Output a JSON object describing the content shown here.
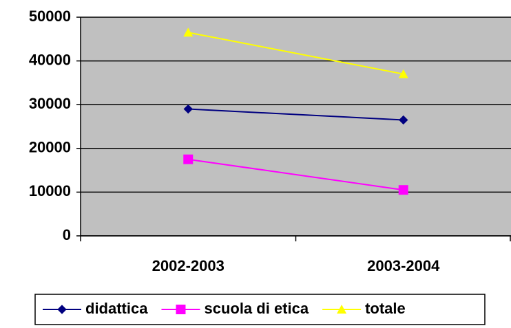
{
  "chart_data": {
    "type": "line",
    "categories": [
      "2002-2003",
      "2003-2004"
    ],
    "series": [
      {
        "name": "didattica",
        "color": "#000080",
        "marker": "diamond",
        "values": [
          29000,
          26500
        ]
      },
      {
        "name": "scuola di etica",
        "color": "#ff00ff",
        "marker": "square",
        "values": [
          17500,
          10500
        ]
      },
      {
        "name": "totale",
        "color": "#ffff00",
        "marker": "triangle",
        "values": [
          46500,
          37000
        ]
      }
    ],
    "ylim": [
      0,
      50000
    ],
    "yticks": [
      0,
      10000,
      20000,
      30000,
      40000,
      50000
    ],
    "grid": true,
    "plot_background": "#c0c0c0",
    "legend": "bottom"
  }
}
